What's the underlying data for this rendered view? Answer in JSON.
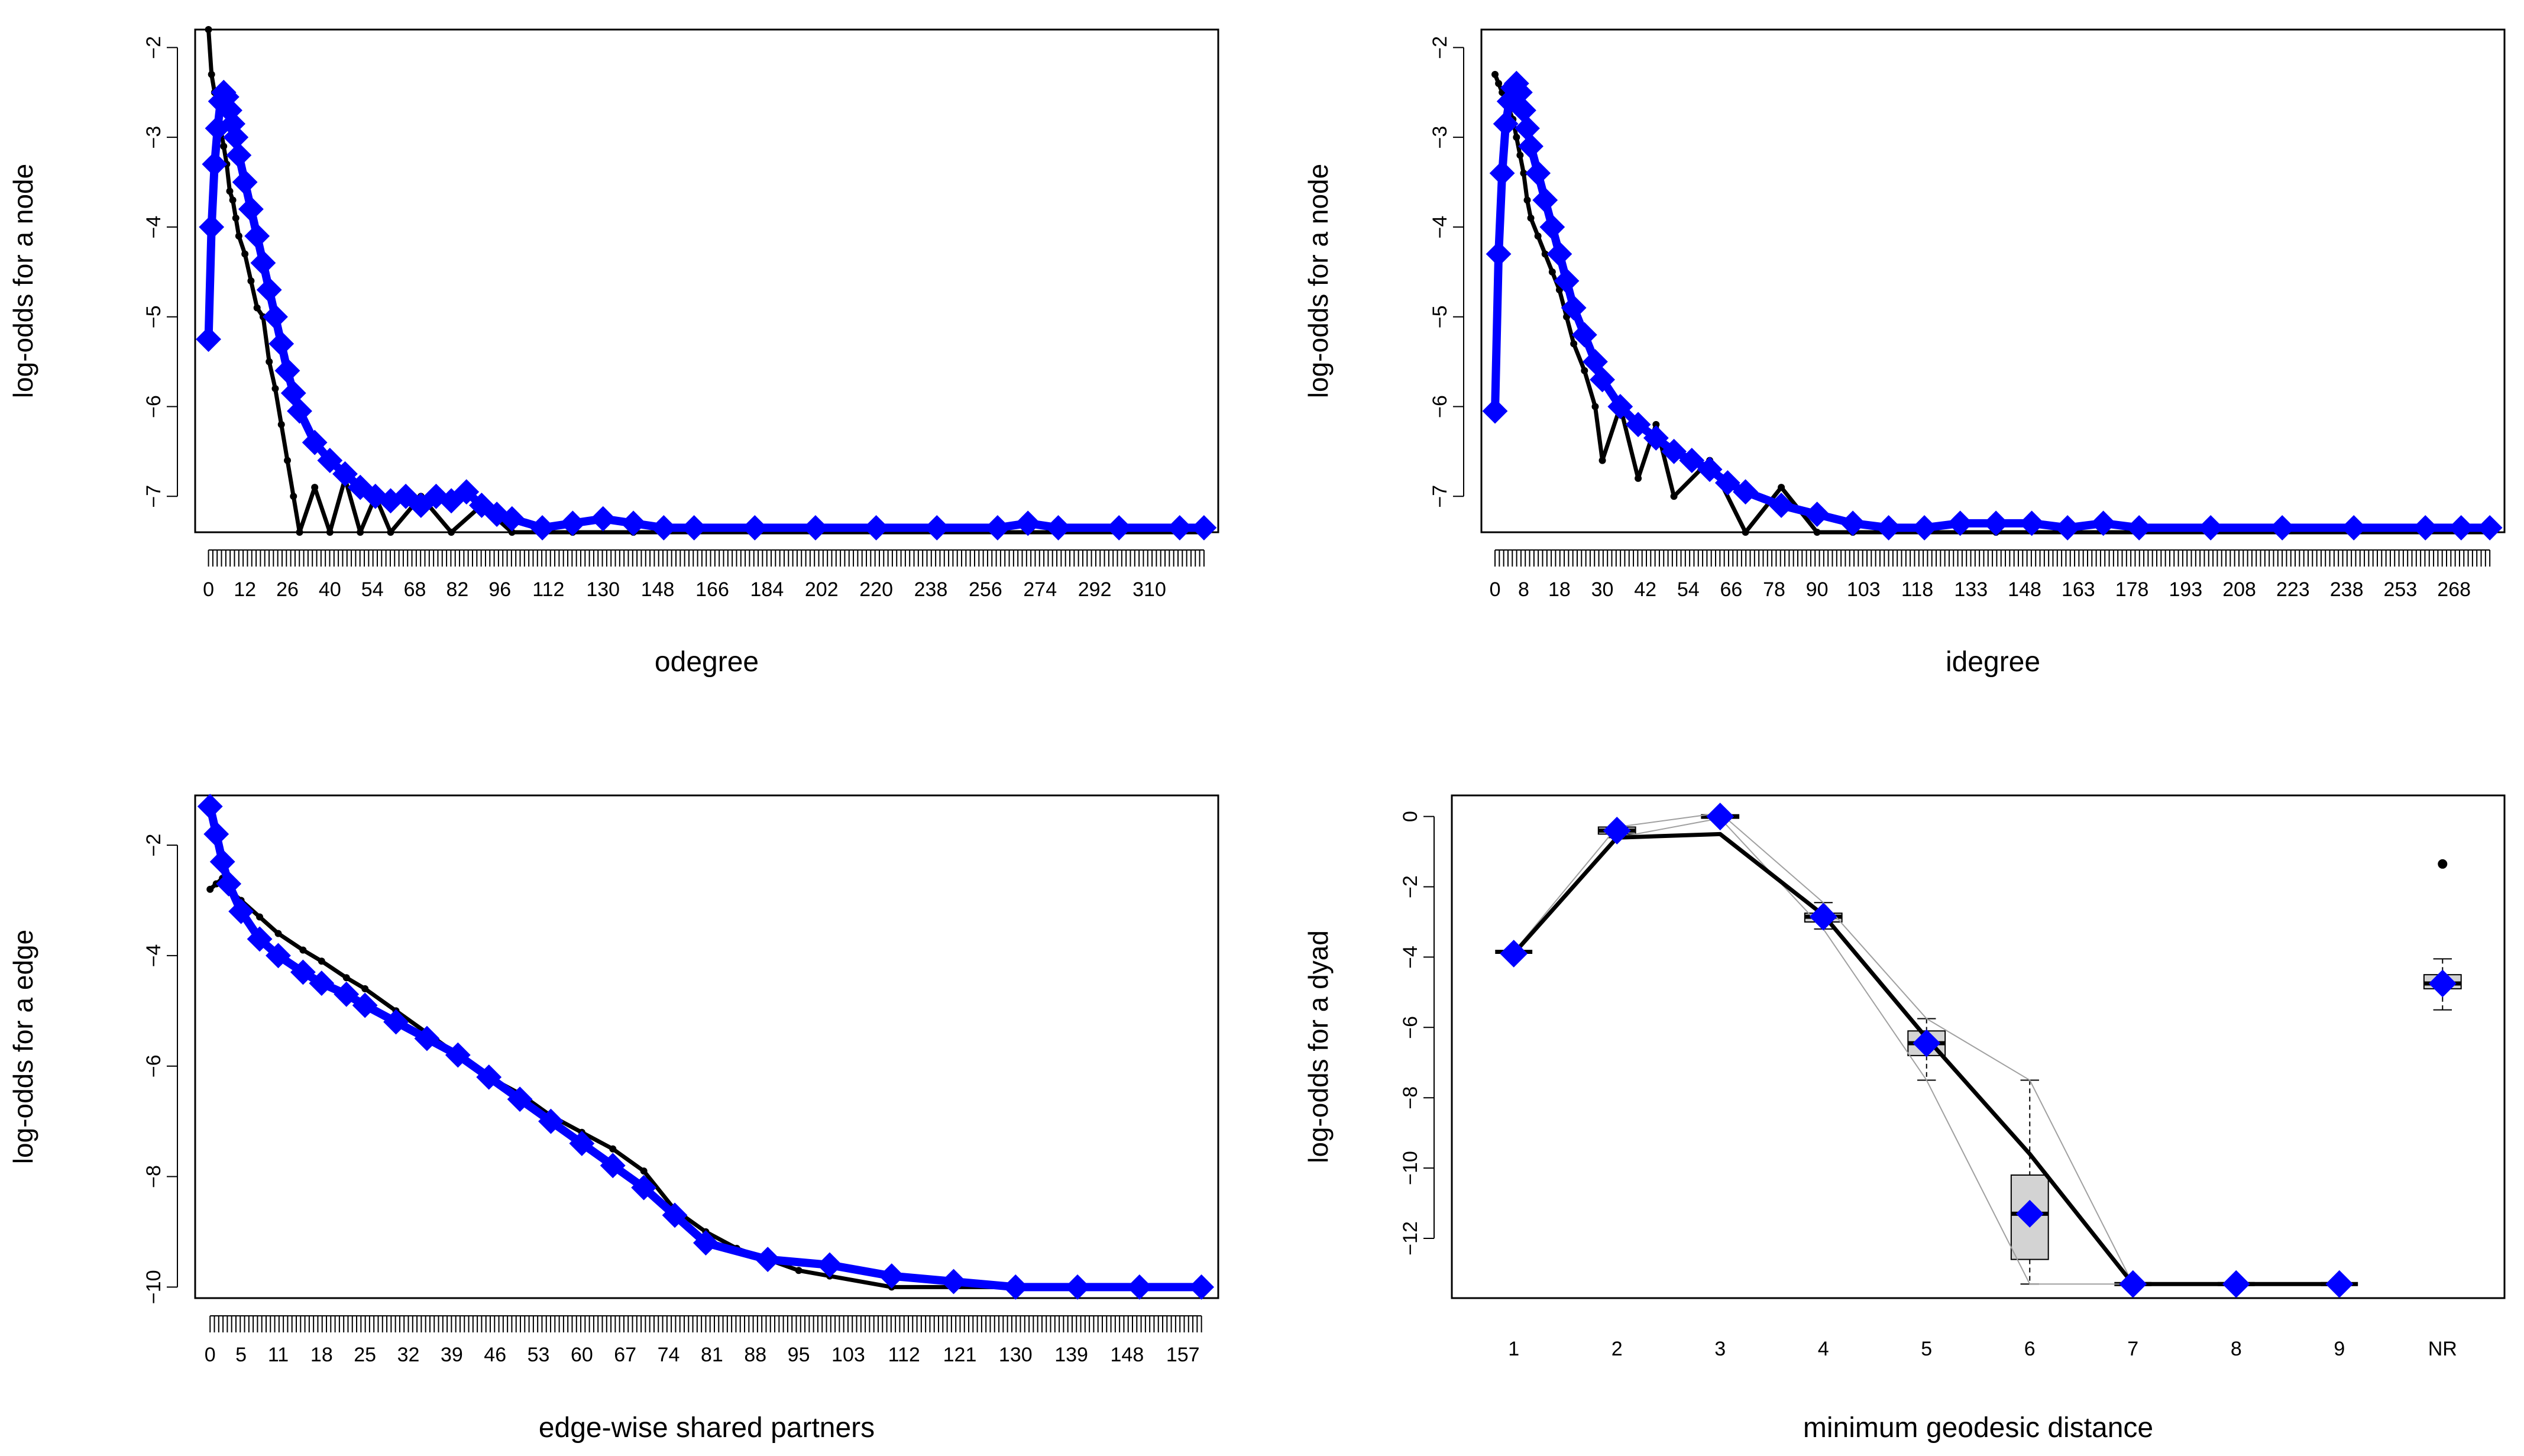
{
  "chart_data": [
    {
      "type": "line",
      "panel": "top-left",
      "xlabel": "odegree",
      "ylabel": "log-odds for a node",
      "xlim": [
        0,
        328
      ],
      "ylim": [
        -7.4,
        -1.8
      ],
      "x_tick_labels": [
        "0",
        "12",
        "26",
        "40",
        "54",
        "68",
        "82",
        "96",
        "112",
        "130",
        "148",
        "166",
        "184",
        "202",
        "220",
        "238",
        "256",
        "274",
        "292",
        "310"
      ],
      "y_ticks": [
        -7,
        -6,
        -5,
        -4,
        -3,
        -2
      ],
      "grid": false,
      "legend": "none",
      "series": [
        {
          "role": "observed",
          "x": [
            0,
            1,
            2,
            3,
            4,
            5,
            6,
            7,
            8,
            9,
            10,
            12,
            14,
            16,
            18,
            20,
            22,
            24,
            26,
            28,
            30,
            35,
            40,
            45,
            50,
            55,
            60,
            70,
            80,
            90,
            100,
            120,
            140,
            160,
            200,
            240,
            280,
            300,
            320,
            328
          ],
          "values": [
            -1.8,
            -2.3,
            -2.5,
            -2.6,
            -2.9,
            -3.1,
            -3.3,
            -3.6,
            -3.7,
            -3.9,
            -4.1,
            -4.3,
            -4.6,
            -4.9,
            -5.0,
            -5.5,
            -5.8,
            -6.2,
            -6.6,
            -7.0,
            -7.4,
            -6.9,
            -7.4,
            -6.8,
            -7.4,
            -7.0,
            -7.4,
            -7.0,
            -7.4,
            -7.1,
            -7.4,
            -7.4,
            -7.4,
            -7.4,
            -7.4,
            -7.4,
            -7.4,
            -7.4,
            -7.4,
            -7.4
          ]
        },
        {
          "role": "simulated-median",
          "x": [
            0,
            1,
            2,
            3,
            4,
            5,
            6,
            7,
            8,
            9,
            10,
            12,
            14,
            16,
            18,
            20,
            22,
            24,
            26,
            28,
            30,
            35,
            40,
            45,
            50,
            55,
            60,
            65,
            70,
            75,
            80,
            85,
            90,
            95,
            100,
            110,
            120,
            130,
            140,
            150,
            160,
            180,
            200,
            220,
            240,
            260,
            270,
            280,
            300,
            320,
            328
          ],
          "values": [
            -5.25,
            -4.0,
            -3.3,
            -2.9,
            -2.6,
            -2.5,
            -2.55,
            -2.7,
            -2.85,
            -3.0,
            -3.2,
            -3.5,
            -3.8,
            -4.1,
            -4.4,
            -4.7,
            -5.0,
            -5.3,
            -5.6,
            -5.85,
            -6.05,
            -6.4,
            -6.6,
            -6.75,
            -6.9,
            -7.0,
            -7.05,
            -7.0,
            -7.1,
            -7.0,
            -7.05,
            -6.95,
            -7.1,
            -7.2,
            -7.25,
            -7.35,
            -7.3,
            -7.25,
            -7.3,
            -7.35,
            -7.35,
            -7.35,
            -7.35,
            -7.35,
            -7.35,
            -7.35,
            -7.3,
            -7.35,
            -7.35,
            -7.35,
            -7.35
          ]
        }
      ]
    },
    {
      "type": "line",
      "panel": "top-right",
      "xlabel": "idegree",
      "ylabel": "log-odds for a node",
      "xlim": [
        0,
        278
      ],
      "ylim": [
        -7.4,
        -1.8
      ],
      "x_tick_labels": [
        "0",
        "8",
        "18",
        "30",
        "42",
        "54",
        "66",
        "78",
        "90",
        "103",
        "118",
        "133",
        "148",
        "163",
        "178",
        "193",
        "208",
        "223",
        "238",
        "253",
        "268"
      ],
      "y_ticks": [
        -7,
        -6,
        -5,
        -4,
        -3,
        -2
      ],
      "grid": false,
      "legend": "none",
      "series": [
        {
          "role": "observed",
          "x": [
            0,
            1,
            2,
            3,
            4,
            5,
            6,
            7,
            8,
            9,
            10,
            12,
            14,
            16,
            18,
            20,
            22,
            25,
            28,
            30,
            35,
            40,
            45,
            50,
            60,
            70,
            80,
            90,
            100,
            120,
            140,
            160,
            180,
            200,
            220,
            240,
            260,
            270,
            278
          ],
          "values": [
            -2.3,
            -2.4,
            -2.5,
            -2.6,
            -2.7,
            -2.8,
            -3.0,
            -3.2,
            -3.4,
            -3.7,
            -3.9,
            -4.1,
            -4.3,
            -4.5,
            -4.7,
            -5.0,
            -5.3,
            -5.6,
            -6.0,
            -6.6,
            -6.0,
            -6.8,
            -6.2,
            -7.0,
            -6.6,
            -7.4,
            -6.9,
            -7.4,
            -7.4,
            -7.4,
            -7.4,
            -7.4,
            -7.4,
            -7.4,
            -7.4,
            -7.4,
            -7.4,
            -7.4,
            -7.4
          ]
        },
        {
          "role": "simulated-median",
          "x": [
            0,
            1,
            2,
            3,
            4,
            5,
            6,
            7,
            8,
            9,
            10,
            12,
            14,
            16,
            18,
            20,
            22,
            25,
            28,
            30,
            35,
            40,
            45,
            50,
            55,
            60,
            65,
            70,
            80,
            90,
            100,
            110,
            120,
            130,
            140,
            150,
            160,
            170,
            180,
            200,
            220,
            240,
            260,
            270,
            278
          ],
          "values": [
            -6.05,
            -4.3,
            -3.4,
            -2.85,
            -2.6,
            -2.45,
            -2.4,
            -2.5,
            -2.7,
            -2.9,
            -3.1,
            -3.4,
            -3.7,
            -4.0,
            -4.3,
            -4.6,
            -4.9,
            -5.2,
            -5.5,
            -5.7,
            -6.0,
            -6.2,
            -6.35,
            -6.5,
            -6.6,
            -6.7,
            -6.85,
            -6.95,
            -7.1,
            -7.2,
            -7.3,
            -7.35,
            -7.35,
            -7.3,
            -7.3,
            -7.3,
            -7.35,
            -7.3,
            -7.35,
            -7.35,
            -7.35,
            -7.35,
            -7.35,
            -7.35,
            -7.35
          ]
        }
      ]
    },
    {
      "type": "line",
      "panel": "bottom-left",
      "xlabel": "edge-wise shared partners",
      "ylabel": "log-odds for a edge",
      "xlim": [
        0,
        160
      ],
      "ylim": [
        -10.2,
        -1.1
      ],
      "x_tick_labels": [
        "0",
        "5",
        "11",
        "18",
        "25",
        "32",
        "39",
        "46",
        "53",
        "60",
        "67",
        "74",
        "81",
        "88",
        "95",
        "103",
        "112",
        "121",
        "130",
        "139",
        "148",
        "157"
      ],
      "y_ticks": [
        -10,
        -8,
        -6,
        -4,
        -2
      ],
      "grid": false,
      "legend": "none",
      "series": [
        {
          "role": "observed",
          "x": [
            0,
            1,
            2,
            3,
            5,
            8,
            11,
            15,
            18,
            22,
            25,
            30,
            35,
            40,
            45,
            50,
            55,
            60,
            65,
            70,
            75,
            80,
            85,
            90,
            95,
            100,
            110,
            120,
            130,
            140,
            150,
            160
          ],
          "values": [
            -2.8,
            -2.7,
            -2.6,
            -2.8,
            -3.0,
            -3.3,
            -3.6,
            -3.9,
            -4.1,
            -4.4,
            -4.6,
            -5.0,
            -5.4,
            -5.8,
            -6.2,
            -6.5,
            -6.9,
            -7.2,
            -7.5,
            -7.9,
            -8.6,
            -9.0,
            -9.3,
            -9.5,
            -9.7,
            -9.8,
            -10.0,
            -10.0,
            -10.0,
            -10.0,
            -10.0,
            -10.0
          ]
        },
        {
          "role": "simulated-median",
          "x": [
            0,
            1,
            2,
            3,
            5,
            8,
            11,
            15,
            18,
            22,
            25,
            30,
            35,
            40,
            45,
            50,
            55,
            60,
            65,
            70,
            75,
            80,
            90,
            100,
            110,
            120,
            130,
            140,
            150,
            160
          ],
          "values": [
            -1.3,
            -1.8,
            -2.3,
            -2.7,
            -3.2,
            -3.7,
            -4.0,
            -4.3,
            -4.5,
            -4.7,
            -4.9,
            -5.2,
            -5.5,
            -5.8,
            -6.2,
            -6.6,
            -7.0,
            -7.4,
            -7.8,
            -8.2,
            -8.7,
            -9.2,
            -9.5,
            -9.6,
            -9.8,
            -9.9,
            -10.0,
            -10.0,
            -10.0,
            -10.0
          ]
        }
      ]
    },
    {
      "type": "line",
      "panel": "bottom-right",
      "xlabel": "minimum geodesic distance",
      "ylabel": "log-odds for a dyad",
      "categories": [
        "1",
        "2",
        "3",
        "4",
        "5",
        "6",
        "7",
        "8",
        "9",
        "NR"
      ],
      "ylim": [
        -13.7,
        0.6
      ],
      "y_ticks": [
        0,
        -2,
        -4,
        -6,
        -8,
        -10,
        -12
      ],
      "grid": false,
      "legend": "none",
      "series": [
        {
          "role": "observed",
          "values": [
            -3.9,
            -0.6,
            -0.5,
            -2.8,
            -6.3,
            -9.6,
            -13.3,
            -13.3,
            -13.3,
            null
          ]
        },
        {
          "role": "simulated-mean",
          "values": [
            -3.9,
            -0.4,
            0.0,
            -2.85,
            -6.45,
            -11.3,
            -13.3,
            -13.3,
            -13.3,
            -4.75
          ]
        }
      ],
      "boxes": [
        {
          "category": "1",
          "q1": -3.85,
          "median": -3.85,
          "q3": -3.85,
          "lo": -3.85,
          "hi": -3.85
        },
        {
          "category": "2",
          "q1": -0.5,
          "median": -0.4,
          "q3": -0.3,
          "lo": -0.6,
          "hi": -0.3
        },
        {
          "category": "3",
          "q1": -0.05,
          "median": 0.0,
          "q3": 0.05,
          "lo": -0.05,
          "hi": 0.1
        },
        {
          "category": "4",
          "q1": -3.0,
          "median": -2.85,
          "q3": -2.75,
          "lo": -3.2,
          "hi": -2.45
        },
        {
          "category": "5",
          "q1": -6.8,
          "median": -6.45,
          "q3": -6.1,
          "lo": -7.5,
          "hi": -5.75
        },
        {
          "category": "6",
          "q1": -12.6,
          "median": -11.3,
          "q3": -10.2,
          "lo": -13.3,
          "hi": -7.5
        },
        {
          "category": "7",
          "q1": -13.3,
          "median": -13.3,
          "q3": -13.3,
          "lo": -13.3,
          "hi": -13.3
        },
        {
          "category": "8",
          "q1": -13.3,
          "median": -13.3,
          "q3": -13.3,
          "lo": -13.3,
          "hi": -13.3
        },
        {
          "category": "9",
          "q1": -13.3,
          "median": -13.3,
          "q3": -13.3,
          "lo": -13.3,
          "hi": -13.3
        },
        {
          "category": "NR",
          "q1": -4.9,
          "median": -4.75,
          "q3": -4.5,
          "lo": -5.5,
          "hi": -4.05,
          "outlier": -1.35
        }
      ]
    }
  ]
}
